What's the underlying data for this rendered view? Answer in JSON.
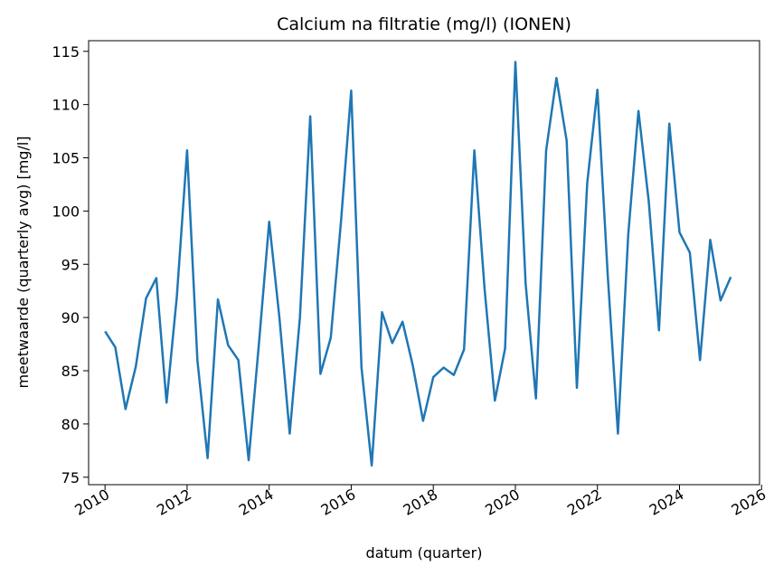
{
  "chart_data": {
    "type": "line",
    "title": "Calcium na filtratie (mg/l) (IONEN)",
    "xlabel": "datum (quarter)",
    "ylabel": "meetwaarde (quarterly avg) [mg/l]",
    "xlim": [
      2009.6,
      2025.95
    ],
    "ylim": [
      74.3,
      116
    ],
    "x_ticks": [
      2010,
      2012,
      2014,
      2016,
      2018,
      2020,
      2022,
      2024,
      2026
    ],
    "y_ticks": [
      75,
      80,
      85,
      90,
      95,
      100,
      105,
      110,
      115
    ],
    "grid": false,
    "line_color": "#1f77b4",
    "series": [
      {
        "x": [
          2010.0,
          2010.25,
          2010.5,
          2010.75,
          2011.0,
          2011.25,
          2011.5,
          2011.75,
          2012.0,
          2012.25,
          2012.5,
          2012.75,
          2013.0,
          2013.25,
          2013.5,
          2013.75,
          2014.0,
          2014.25,
          2014.5,
          2014.75,
          2015.0,
          2015.25,
          2015.5,
          2015.75,
          2016.0,
          2016.25,
          2016.5,
          2016.75,
          2017.0,
          2017.25,
          2017.5,
          2017.75,
          2018.0,
          2018.25,
          2018.5,
          2018.75,
          2019.0,
          2019.25,
          2019.5,
          2019.75,
          2020.0,
          2020.25,
          2020.5,
          2020.75,
          2021.0,
          2021.25,
          2021.5,
          2021.75,
          2022.0,
          2022.25,
          2022.5,
          2022.75,
          2023.0,
          2023.25,
          2023.5,
          2023.75,
          2024.0,
          2024.25,
          2024.5,
          2024.75,
          2025.0,
          2025.25
        ],
        "values": [
          88.7,
          87.2,
          81.4,
          85.4,
          91.8,
          93.7,
          82.0,
          92.0,
          105.7,
          86.0,
          76.8,
          91.7,
          87.4,
          86.0,
          76.6,
          87.5,
          99.0,
          90.0,
          79.1,
          90.0,
          108.9,
          84.7,
          88.1,
          99.0,
          111.3,
          85.3,
          76.1,
          90.5,
          87.6,
          89.6,
          85.5,
          80.3,
          84.4,
          85.3,
          84.6,
          87.0,
          105.7,
          92.7,
          82.2,
          87.1,
          114.0,
          93.2,
          82.4,
          105.7,
          112.5,
          106.6,
          83.4,
          102.6,
          111.4,
          94.0,
          79.1,
          97.8,
          109.4,
          100.9,
          88.8,
          108.2,
          98.0,
          96.1,
          86.0,
          97.3,
          91.6,
          93.8
        ]
      }
    ]
  }
}
